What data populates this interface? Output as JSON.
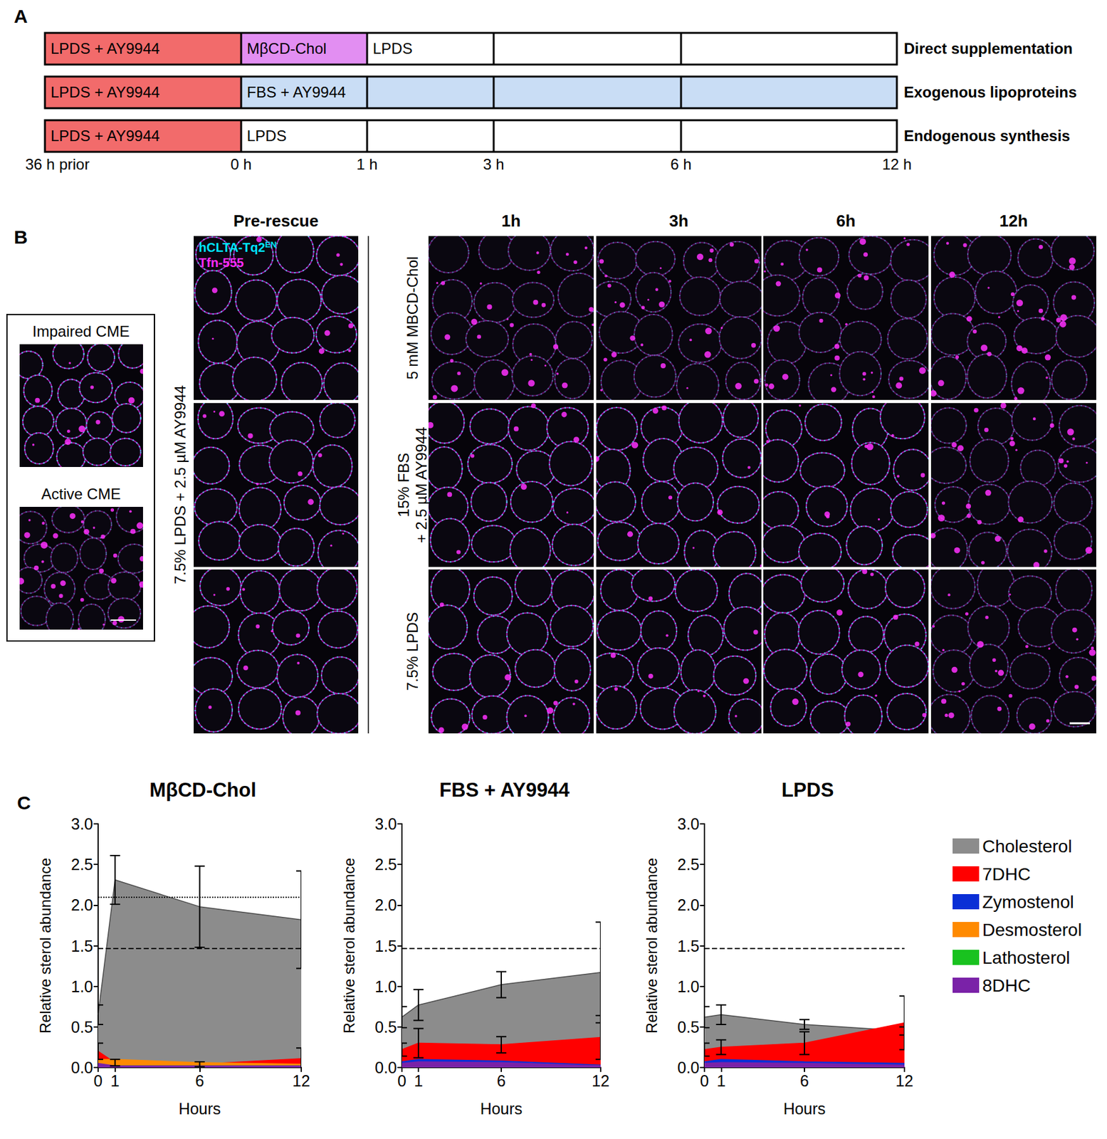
{
  "panel_labels": [
    "A",
    "B",
    "C"
  ],
  "panel_a": {
    "time_labels": [
      {
        "hours": -36,
        "label": "36 h prior"
      },
      {
        "hours": 0,
        "label": "0 h"
      },
      {
        "hours": 1,
        "label": "1 h"
      },
      {
        "hours": 3,
        "label": "3 h"
      },
      {
        "hours": 6,
        "label": "6 h"
      },
      {
        "hours": 12,
        "label": "12 h"
      }
    ],
    "rows": [
      {
        "name": "Direct supplementation",
        "segments": [
          {
            "label": "LPDS + AY9944",
            "from": -36,
            "to": 0,
            "color": "#f26b6b"
          },
          {
            "label": "MβCD-Chol",
            "from": 0,
            "to": 1,
            "color": "#e28ef2"
          },
          {
            "label": "LPDS",
            "from": 1,
            "to": 12,
            "color": "#ffffff"
          }
        ]
      },
      {
        "name": "Exogenous lipoproteins",
        "segments": [
          {
            "label": "LPDS + AY9944",
            "from": -36,
            "to": 0,
            "color": "#f26b6b"
          },
          {
            "label": "FBS + AY9944",
            "from": 0,
            "to": 12,
            "color": "#c9ddf5"
          }
        ]
      },
      {
        "name": "Endogenous synthesis",
        "segments": [
          {
            "label": "LPDS + AY9944",
            "from": -36,
            "to": 0,
            "color": "#f26b6b"
          },
          {
            "label": "LPDS",
            "from": 0,
            "to": 12,
            "color": "#ffffff"
          }
        ]
      }
    ]
  },
  "panel_b": {
    "inset": [
      "Impaired CME",
      "Active CME"
    ],
    "channels": [
      {
        "label": "hCLTA-Tq2",
        "superscript": "EN",
        "color": "#00e5ff"
      },
      {
        "label": "Tfn-555",
        "color": "#ff2bff"
      }
    ],
    "pre_rescue": {
      "header": "Pre-rescue",
      "condition": "7.5% LPDS + 2.5 µM AY9944"
    },
    "timepoints": [
      "1h",
      "3h",
      "6h",
      "12h"
    ],
    "conditions": [
      [
        "5 mM MBCD-Chol"
      ],
      [
        "15% FBS",
        "+ 2.5 µM AY9944"
      ],
      [
        "7.5% LPDS"
      ]
    ]
  },
  "chart_data": [
    {
      "type": "area",
      "title": "MβCD-Chol",
      "x_label": "Hours",
      "y_label": "Relative sterol abundance",
      "x": [
        0,
        1,
        6,
        12
      ],
      "xlim": [
        0,
        12
      ],
      "xticks": [
        0,
        1,
        6,
        12
      ],
      "ylim": [
        0,
        3
      ],
      "yticks": [
        {
          "value": 0,
          "label": "0.0"
        },
        0.5,
        {
          "value": 1,
          "label": "1.0"
        },
        1.5,
        {
          "value": 2,
          "label": "2.0"
        },
        2.5,
        {
          "value": 3,
          "label": "3.0"
        }
      ],
      "stacked": false,
      "grid": false,
      "reference_lines": [
        {
          "value": 1.47,
          "line_style": "dashed"
        },
        {
          "value": 2.1,
          "line_style": "dotted"
        }
      ],
      "series": [
        {
          "name": "Cholesterol",
          "color": "#8c8c8c",
          "values": [
            0.65,
            2.31,
            1.98,
            1.82
          ],
          "errors": [
            0.12,
            0.3,
            0.5,
            0.6
          ]
        },
        {
          "name": "7DHC",
          "color": "#ff0000",
          "values": [
            0.2,
            0.06,
            0.04,
            0.11
          ],
          "errors": [
            0.1,
            0.04,
            0.03,
            0.13
          ]
        },
        {
          "name": "Zymostenol",
          "color": "#0a2fd6",
          "values": [
            0.05,
            0.03,
            0.03,
            0.02
          ]
        },
        {
          "name": "Desmosterol",
          "color": "#ff8a00",
          "values": [
            0.1,
            0.1,
            0.06,
            0.04
          ]
        },
        {
          "name": "Lathosterol",
          "color": "#19c21f",
          "values": [
            0.02,
            0.02,
            0.02,
            0.02
          ]
        },
        {
          "name": "8DHC",
          "color": "#7a22a8",
          "values": [
            0.05,
            0.02,
            0.02,
            0.02
          ]
        }
      ]
    },
    {
      "type": "area",
      "title": "FBS + AY9944",
      "x_label": "Hours",
      "y_label": "Relative sterol abundance",
      "x": [
        0,
        1,
        6,
        12
      ],
      "xlim": [
        0,
        12
      ],
      "xticks": [
        0,
        1,
        6,
        12
      ],
      "ylim": [
        0,
        3
      ],
      "yticks": [
        {
          "value": 0,
          "label": "0.0"
        },
        0.5,
        {
          "value": 1,
          "label": "1.0"
        },
        1.5,
        {
          "value": 2,
          "label": "2.0"
        },
        2.5,
        {
          "value": 3,
          "label": "3.0"
        }
      ],
      "stacked": false,
      "grid": false,
      "reference_lines": [
        {
          "value": 1.47,
          "line_style": "dashed"
        }
      ],
      "series": [
        {
          "name": "Cholesterol",
          "color": "#8c8c8c",
          "values": [
            0.62,
            0.77,
            1.02,
            1.17
          ],
          "errors": [
            0.13,
            0.19,
            0.16,
            0.62
          ]
        },
        {
          "name": "7DHC",
          "color": "#ff0000",
          "values": [
            0.22,
            0.3,
            0.28,
            0.37
          ],
          "errors": [
            0.08,
            0.18,
            0.1,
            0.27
          ]
        },
        {
          "name": "Zymostenol",
          "color": "#0a2fd6",
          "values": [
            0.07,
            0.1,
            0.08,
            0.03
          ]
        },
        {
          "name": "Desmosterol",
          "color": "#ff8a00",
          "values": [
            0.02,
            0.02,
            0.02,
            0.02
          ]
        },
        {
          "name": "Lathosterol",
          "color": "#19c21f",
          "values": [
            0.01,
            0.01,
            0.01,
            0.01
          ]
        },
        {
          "name": "8DHC",
          "color": "#7a22a8",
          "values": [
            0.05,
            0.07,
            0.06,
            0.02
          ]
        }
      ]
    },
    {
      "type": "area",
      "title": "LPDS",
      "x_label": "Hours",
      "y_label": "Relative sterol abundance",
      "x": [
        0,
        1,
        6,
        12
      ],
      "xlim": [
        0,
        12
      ],
      "xticks": [
        0,
        1,
        6,
        12
      ],
      "ylim": [
        0,
        3
      ],
      "yticks": [
        {
          "value": 0,
          "label": "0.0"
        },
        0.5,
        {
          "value": 1,
          "label": "1.0"
        },
        1.5,
        {
          "value": 2,
          "label": "2.0"
        },
        2.5,
        {
          "value": 3,
          "label": "3.0"
        }
      ],
      "stacked": false,
      "grid": false,
      "reference_lines": [
        {
          "value": 1.47,
          "line_style": "dashed"
        }
      ],
      "series": [
        {
          "name": "Cholesterol",
          "color": "#8c8c8c",
          "values": [
            0.62,
            0.65,
            0.53,
            0.45
          ],
          "errors": [
            0.13,
            0.12,
            0.06,
            0.05
          ]
        },
        {
          "name": "7DHC",
          "color": "#ff0000",
          "values": [
            0.22,
            0.25,
            0.3,
            0.55
          ],
          "errors": [
            0.08,
            0.09,
            0.14,
            0.33
          ]
        },
        {
          "name": "Zymostenol",
          "color": "#0a2fd6",
          "values": [
            0.07,
            0.1,
            0.07,
            0.05
          ]
        },
        {
          "name": "Desmosterol",
          "color": "#ff8a00",
          "values": [
            0.02,
            0.02,
            0.02,
            0.02
          ]
        },
        {
          "name": "Lathosterol",
          "color": "#19c21f",
          "values": [
            0.01,
            0.01,
            0.01,
            0.01
          ]
        },
        {
          "name": "8DHC",
          "color": "#7a22a8",
          "values": [
            0.05,
            0.06,
            0.05,
            0.03
          ]
        }
      ]
    }
  ]
}
